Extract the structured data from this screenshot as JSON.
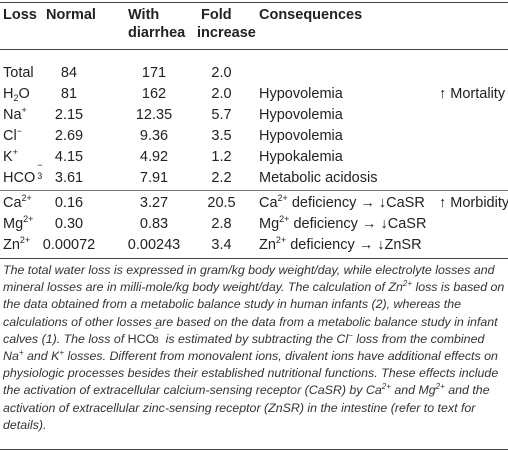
{
  "header": {
    "loss": "Loss",
    "normal": "Normal",
    "with_diarrhea_1": "With",
    "with_diarrhea_2": "diarrhea",
    "fold_1": "Fold",
    "fold_2": "increase",
    "consequences": "Consequences"
  },
  "rows": [
    {
      "loss": "Total",
      "normal": "84",
      "diarrhea": "171",
      "fold": "2.0",
      "consequence": "",
      "outcome": ""
    },
    {
      "loss_base": "H",
      "loss_sub": "2",
      "loss_tail": "O",
      "normal": "81",
      "diarrhea": "162",
      "fold": "2.0",
      "consequence": "Hypovolemia",
      "outcome": "↑ Mortality"
    },
    {
      "loss_base": "Na",
      "loss_sup": "+",
      "normal": "2.15",
      "diarrhea": "12.35",
      "fold": "5.7",
      "consequence": "Hypovolemia",
      "outcome": ""
    },
    {
      "loss_base": "Cl",
      "loss_sup": "−",
      "normal": "2.69",
      "diarrhea": "9.36",
      "fold": "3.5",
      "consequence": "Hypovolemia",
      "outcome": ""
    },
    {
      "loss_base": "K",
      "loss_sup": "+",
      "normal": "4.15",
      "diarrhea": "4.92",
      "fold": "1.2",
      "consequence": "Hypokalemia",
      "outcome": ""
    },
    {
      "loss_base": "HCO",
      "loss_sub": "3",
      "loss_sup": "−",
      "normal": "3.61",
      "diarrhea": "7.91",
      "fold": "2.2",
      "consequence": "Metabolic acidosis",
      "outcome": ""
    },
    {
      "loss_base": "Ca",
      "loss_sup": "2+",
      "normal": "0.16",
      "diarrhea": "3.27",
      "fold": "20.5",
      "consequence_base": "Ca",
      "consequence_sup": "2+",
      "consequence_tail": " deficiency → ↓CaSR",
      "outcome": "↑ Morbidity"
    },
    {
      "loss_base": "Mg",
      "loss_sup": "2+",
      "normal": "0.30",
      "diarrhea": "0.83",
      "fold": "2.8",
      "consequence_base": "Mg",
      "consequence_sup": "2+",
      "consequence_tail": " deficiency → ↓CaSR",
      "outcome": ""
    },
    {
      "loss_base": "Zn",
      "loss_sup": "2+",
      "normal": "0.00072",
      "diarrhea": "0.00243",
      "fold": "3.4",
      "consequence_base": "Zn",
      "consequence_sup": "2+",
      "consequence_tail": " deficiency → ↓ZnSR",
      "outcome": ""
    }
  ],
  "footnote": {
    "p1": "The total water loss is expressed in gram/kg body weight/day, while electrolyte losses and mineral losses are in milli-mole/kg body weight/day. The calculation of Zn",
    "p1_sup": "2+",
    "p2": " loss is based on the data obtained from a metabolic balance study in human infants (2), whereas the calculations of other losses are based on the data from a metabolic balance study in infant calves (1). The loss of ",
    "hco3_base": "HCO",
    "hco3_sub": "3",
    "hco3_sup": "−",
    "p3": " is estimated by subtracting the Cl",
    "p3_sup": "−",
    "p4": " loss from the combined Na",
    "p4_sup": "+",
    "p5": " and K",
    "p5_sup": "+",
    "p6": " losses. Different from monovalent ions, divalent ions have additional effects on physiologic processes besides their established nutritional functions. These effects include the activation of extracellular calcium-sensing receptor (CaSR) by Ca",
    "p6_sup": "2+",
    "p7": " and Mg",
    "p7_sup": "2+",
    "p8": " and the activation of extracellular zinc-sensing receptor (ZnSR) in the intestine (refer to text for details)."
  }
}
